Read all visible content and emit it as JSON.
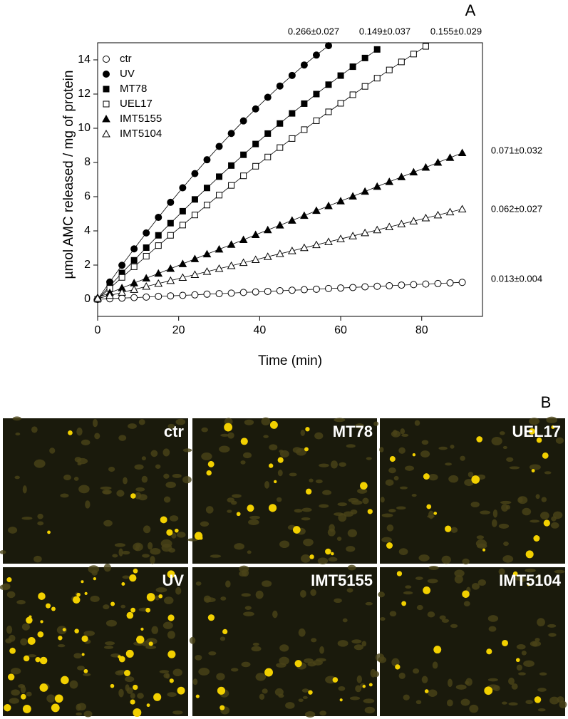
{
  "chart_data": {
    "type": "scatter",
    "panel_label": "A",
    "xlabel": "Time (min)",
    "ylabel": "µmol AMC released / mg of protein",
    "xlim": [
      0,
      95
    ],
    "ylim": [
      -1,
      15
    ],
    "xticks": [
      0,
      20,
      40,
      60,
      80
    ],
    "yticks": [
      0,
      2,
      4,
      6,
      8,
      10,
      12,
      14
    ],
    "legend": "upper left",
    "x": [
      0,
      3,
      6,
      9,
      12,
      15,
      18,
      21,
      24,
      27,
      30,
      33,
      36,
      39,
      42,
      45,
      48,
      51,
      54,
      57,
      60,
      63,
      66,
      69,
      72,
      75,
      78,
      81,
      84,
      87,
      90
    ],
    "series": [
      {
        "name": "ctr",
        "color": "#000000",
        "marker": "circle",
        "filled": false,
        "values": [
          0,
          0.03,
          0.07,
          0.1,
          0.13,
          0.17,
          0.2,
          0.23,
          0.26,
          0.3,
          0.33,
          0.36,
          0.4,
          0.43,
          0.46,
          0.5,
          0.53,
          0.56,
          0.59,
          0.63,
          0.66,
          0.69,
          0.73,
          0.76,
          0.79,
          0.83,
          0.86,
          0.89,
          0.92,
          0.96,
          0.99
        ]
      },
      {
        "name": "UV",
        "color": "#000000",
        "marker": "circle",
        "filled": true,
        "values": [
          0,
          1.01,
          1.99,
          2.95,
          3.88,
          4.79,
          5.67,
          6.52,
          7.35,
          8.16,
          8.94,
          9.7,
          10.43,
          11.13,
          11.81,
          12.47,
          13.09,
          13.7,
          14.28,
          14.83,
          null,
          null,
          null,
          null,
          null,
          null,
          null,
          null,
          null,
          null,
          null
        ]
      },
      {
        "name": "MT78",
        "color": "#000000",
        "marker": "square",
        "filled": true,
        "values": [
          0,
          0.77,
          1.54,
          2.28,
          3.02,
          3.74,
          4.45,
          5.15,
          5.84,
          6.51,
          7.17,
          7.82,
          8.45,
          9.08,
          9.69,
          10.28,
          10.87,
          11.44,
          12.0,
          12.55,
          13.08,
          13.6,
          14.11,
          14.61,
          null,
          null,
          null,
          null,
          null,
          null,
          null
        ]
      },
      {
        "name": "UEL17",
        "color": "#000000",
        "marker": "square",
        "filled": false,
        "values": [
          0,
          0.64,
          1.28,
          1.9,
          2.52,
          3.14,
          3.74,
          4.34,
          4.93,
          5.51,
          6.09,
          6.66,
          7.22,
          7.78,
          8.32,
          8.87,
          9.4,
          9.92,
          10.44,
          10.96,
          11.46,
          11.96,
          12.45,
          12.93,
          13.41,
          13.88,
          14.34,
          14.79,
          null,
          null,
          null
        ]
      },
      {
        "name": "IMT5155",
        "color": "#000000",
        "marker": "triangle",
        "filled": true,
        "values": [
          0.1,
          0.38,
          0.66,
          0.95,
          1.23,
          1.51,
          1.79,
          2.07,
          2.36,
          2.64,
          2.92,
          3.2,
          3.48,
          3.77,
          4.05,
          4.33,
          4.61,
          4.89,
          5.18,
          5.46,
          5.74,
          6.02,
          6.3,
          6.59,
          6.87,
          7.15,
          7.43,
          7.71,
          8.0,
          8.28,
          8.56
        ]
      },
      {
        "name": "IMT5104",
        "color": "#000000",
        "marker": "triangle",
        "filled": false,
        "values": [
          0.05,
          0.22,
          0.4,
          0.57,
          0.75,
          0.92,
          1.09,
          1.27,
          1.44,
          1.62,
          1.79,
          1.96,
          2.14,
          2.31,
          2.49,
          2.66,
          2.83,
          3.01,
          3.18,
          3.36,
          3.53,
          3.7,
          3.88,
          4.05,
          4.23,
          4.4,
          4.57,
          4.75,
          4.92,
          5.1,
          5.27
        ]
      }
    ],
    "annotations": [
      "0.266±0.027",
      "0.149±0.037",
      "0.155±0.029",
      "0.071±0.032",
      "0.062±0.027",
      "0.013±0.004"
    ]
  },
  "panel_b": {
    "label": "B",
    "images": [
      {
        "label": "ctr"
      },
      {
        "label": "MT78"
      },
      {
        "label": "UEL17"
      },
      {
        "label": "UV"
      },
      {
        "label": "IMT5155"
      },
      {
        "label": "IMT5104"
      }
    ]
  }
}
